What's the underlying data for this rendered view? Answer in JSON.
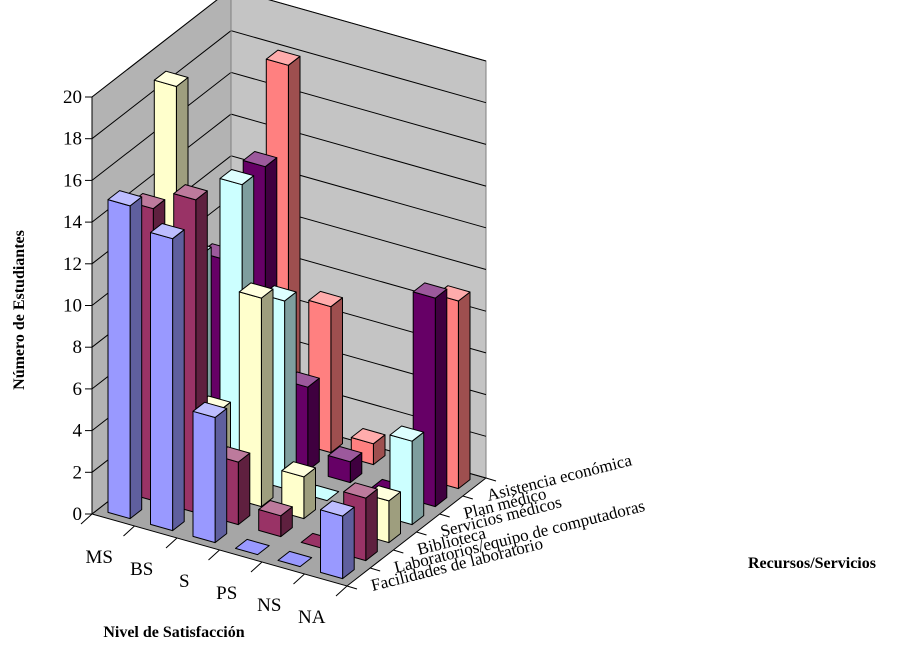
{
  "chart_data": {
    "type": "bar",
    "variant": "3d-clustered",
    "title": "",
    "xlabel": "Nivel de Satisfacción",
    "ylabel": "Número de Estudiantes",
    "zlabel": "Recursos/Servicios",
    "ylim": [
      0,
      20
    ],
    "yticks": [
      "0",
      "2",
      "4",
      "6",
      "8",
      "10",
      "12",
      "14",
      "16",
      "18",
      "20"
    ],
    "grid": true,
    "categories": [
      "MS",
      "BS",
      "S",
      "PS",
      "NS",
      "NA"
    ],
    "series": [
      {
        "name": "Facilidades de laboratorio",
        "values": [
          15,
          14,
          6,
          0,
          0,
          3
        ],
        "color": "#9999ff"
      },
      {
        "name": "Laboratorios/equipo de computadoras",
        "values": [
          14,
          15,
          3,
          1,
          0,
          3
        ],
        "color": "#993366"
      },
      {
        "name": "Biblioteca",
        "values": [
          19,
          4,
          10,
          2,
          0,
          2
        ],
        "color": "#ffffcc"
      },
      {
        "name": "Servicios médicos",
        "values": [
          10,
          14,
          9,
          0,
          0,
          4
        ],
        "color": "#ccffff"
      },
      {
        "name": "Plan médico",
        "values": [
          9,
          14,
          4,
          1,
          0,
          10
        ],
        "color": "#660066"
      },
      {
        "name": "Asistencia económica",
        "values": [
          10,
          18,
          7,
          1,
          0,
          9
        ],
        "color": "#ff8080"
      }
    ]
  }
}
